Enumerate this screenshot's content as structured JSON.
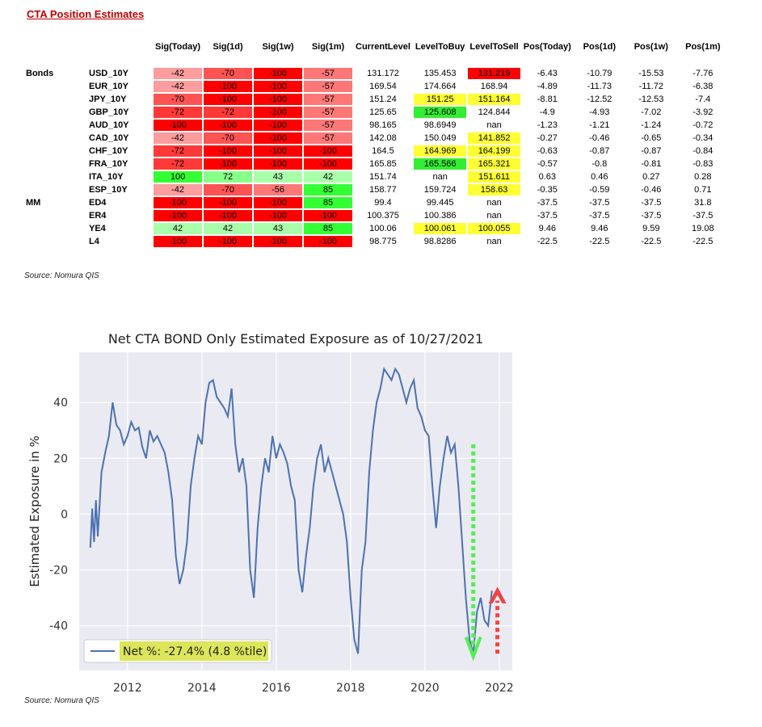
{
  "title": "CTA Position Estimates",
  "columns": [
    "Sig(Today)",
    "Sig(1d)",
    "Sig(1w)",
    "Sig(1m)",
    "CurrentLevel",
    "LevelToBuy",
    "LevelToSell",
    "Pos(Today)",
    "Pos(1d)",
    "Pos(1w)",
    "Pos(1m)"
  ],
  "colors": {
    "sig_palette": [
      "#ff0000",
      "#ff3838",
      "#fe5353",
      "#fe7777",
      "#fd9d9d",
      "#33ff33",
      "#88ff88",
      "#aaffaa"
    ],
    "highlight_yellow": "#ffff33",
    "highlight_green": "#33ee33",
    "highlight_red": "#ff0000",
    "chart_line": "#4c72b0",
    "chart_bg": "#eaeaf2",
    "legend_bg": "#dde65a",
    "arrow_green": "#55ee55",
    "arrow_red": "#ee4444"
  },
  "rows": [
    {
      "group": "Bonds",
      "name": "USD_10Y",
      "sig": [
        "-42",
        "-70",
        "-100",
        "-57"
      ],
      "current": "131.172",
      "buy": "135.453",
      "sell": "131.219",
      "sell_hl": "red",
      "pos": [
        "-6.43",
        "-10.79",
        "-15.53",
        "-7.76"
      ]
    },
    {
      "group": "",
      "name": "EUR_10Y",
      "sig": [
        "-42",
        "-100",
        "-100",
        "-57"
      ],
      "current": "169.54",
      "buy": "174.664",
      "sell": "168.94",
      "pos": [
        "-4.89",
        "-11.73",
        "-11.72",
        "-6.38"
      ]
    },
    {
      "group": "",
      "name": "JPY_10Y",
      "sig": [
        "-70",
        "-100",
        "-100",
        "-57"
      ],
      "current": "151.24",
      "buy": "151.25",
      "buy_hl": "yellow",
      "sell": "151.164",
      "sell_hl": "yellow",
      "pos": [
        "-8.81",
        "-12.52",
        "-12.53",
        "-7.4"
      ]
    },
    {
      "group": "",
      "name": "GBP_10Y",
      "sig": [
        "-72",
        "-72",
        "-100",
        "-57"
      ],
      "current": "125.65",
      "buy": "125.608",
      "buy_hl": "green",
      "sell": "124.844",
      "pos": [
        "-4.9",
        "-4.93",
        "-7.02",
        "-3.92"
      ]
    },
    {
      "group": "",
      "name": "AUD_10Y",
      "sig": [
        "-100",
        "-100",
        "-100",
        "-57"
      ],
      "current": "98.165",
      "buy": "98.6949",
      "sell": "nan",
      "pos": [
        "-1.23",
        "-1.21",
        "-1.24",
        "-0.72"
      ]
    },
    {
      "group": "",
      "name": "CAD_10Y",
      "sig": [
        "-42",
        "-70",
        "-100",
        "-57"
      ],
      "current": "142.08",
      "buy": "150.049",
      "sell": "141.852",
      "sell_hl": "yellow",
      "pos": [
        "-0.27",
        "-0.46",
        "-0.65",
        "-0.34"
      ]
    },
    {
      "group": "",
      "name": "CHF_10Y",
      "sig": [
        "-72",
        "-100",
        "-100",
        "-100"
      ],
      "current": "164.5",
      "buy": "164.969",
      "buy_hl": "yellow",
      "sell": "164.199",
      "sell_hl": "yellow",
      "pos": [
        "-0.63",
        "-0.87",
        "-0.87",
        "-0.84"
      ]
    },
    {
      "group": "",
      "name": "FRA_10Y",
      "sig": [
        "-72",
        "-100",
        "-100",
        "-100"
      ],
      "current": "165.85",
      "buy": "165.566",
      "buy_hl": "green",
      "sell": "165.321",
      "sell_hl": "yellow",
      "pos": [
        "-0.57",
        "-0.8",
        "-0.81",
        "-0.83"
      ]
    },
    {
      "group": "",
      "name": "ITA_10Y",
      "sig": [
        "100",
        "72",
        "43",
        "42"
      ],
      "current": "151.74",
      "buy": "nan",
      "sell": "151.611",
      "sell_hl": "yellow",
      "pos": [
        "0.63",
        "0.46",
        "0.27",
        "0.28"
      ]
    },
    {
      "group": "",
      "name": "ESP_10Y",
      "sig": [
        "-42",
        "-70",
        "-56",
        "85"
      ],
      "current": "158.77",
      "buy": "159.724",
      "sell": "158.63",
      "sell_hl": "yellow",
      "pos": [
        "-0.35",
        "-0.59",
        "-0.46",
        "0.71"
      ]
    },
    {
      "group": "MM",
      "name": "ED4",
      "sig": [
        "-100",
        "-100",
        "-100",
        "85"
      ],
      "current": "99.4",
      "buy": "99.445",
      "sell": "nan",
      "pos": [
        "-37.5",
        "-37.5",
        "-37.5",
        "31.8"
      ]
    },
    {
      "group": "",
      "name": "ER4",
      "sig": [
        "-100",
        "-100",
        "-100",
        "-100"
      ],
      "current": "100.375",
      "buy": "100.386",
      "sell": "nan",
      "pos": [
        "-37.5",
        "-37.5",
        "-37.5",
        "-37.5"
      ]
    },
    {
      "group": "",
      "name": "YE4",
      "sig": [
        "42",
        "42",
        "43",
        "85"
      ],
      "current": "100.06",
      "buy": "100.061",
      "buy_hl": "yellow",
      "sell": "100.055",
      "sell_hl": "yellow",
      "pos": [
        "9.46",
        "9.46",
        "9.59",
        "19.08"
      ]
    },
    {
      "group": "",
      "name": "L4",
      "sig": [
        "-100",
        "-100",
        "-100",
        "-100"
      ],
      "current": "98.775",
      "buy": "98.8286",
      "sell": "nan",
      "pos": [
        "-22.5",
        "-22.5",
        "-22.5",
        "-22.5"
      ]
    }
  ],
  "source_top": "Source: Nomura QIS",
  "source_bottom": "Source: Nomura QIS",
  "chart_data": {
    "type": "line",
    "title": "Net CTA BOND Only Estimated Exposure as of 10/27/2021",
    "xlabel": "",
    "ylabel": "Estimated Exposure in %",
    "xlim": [
      2010.7,
      2022.35
    ],
    "ylim": [
      -56,
      58
    ],
    "xticks": [
      2012,
      2014,
      2016,
      2018,
      2020,
      2022
    ],
    "yticks": [
      -40,
      -20,
      0,
      20,
      40
    ],
    "grid": true,
    "legend_position": "lower-left",
    "series": [
      {
        "name": "Net %:  -27.4% (4.8 %tile)",
        "x": [
          2011.0,
          2011.05,
          2011.1,
          2011.15,
          2011.2,
          2011.3,
          2011.4,
          2011.5,
          2011.6,
          2011.7,
          2011.8,
          2011.9,
          2012.0,
          2012.1,
          2012.2,
          2012.3,
          2012.4,
          2012.5,
          2012.6,
          2012.7,
          2012.8,
          2012.9,
          2013.0,
          2013.1,
          2013.2,
          2013.3,
          2013.4,
          2013.5,
          2013.6,
          2013.7,
          2013.8,
          2013.9,
          2014.0,
          2014.1,
          2014.2,
          2014.3,
          2014.4,
          2014.5,
          2014.6,
          2014.7,
          2014.8,
          2014.9,
          2015.0,
          2015.1,
          2015.2,
          2015.3,
          2015.4,
          2015.5,
          2015.6,
          2015.7,
          2015.8,
          2015.9,
          2016.0,
          2016.1,
          2016.2,
          2016.3,
          2016.4,
          2016.5,
          2016.6,
          2016.7,
          2016.8,
          2016.9,
          2017.0,
          2017.1,
          2017.2,
          2017.3,
          2017.4,
          2017.5,
          2017.6,
          2017.7,
          2017.8,
          2017.9,
          2018.0,
          2018.1,
          2018.2,
          2018.3,
          2018.4,
          2018.5,
          2018.6,
          2018.7,
          2018.8,
          2018.9,
          2019.0,
          2019.1,
          2019.2,
          2019.3,
          2019.4,
          2019.5,
          2019.6,
          2019.7,
          2019.8,
          2019.9,
          2020.0,
          2020.1,
          2020.2,
          2020.3,
          2020.4,
          2020.5,
          2020.6,
          2020.7,
          2020.8,
          2020.9,
          2021.0,
          2021.1,
          2021.2,
          2021.3,
          2021.4,
          2021.5,
          2021.6,
          2021.7,
          2021.8
        ],
        "y": [
          -12,
          2,
          -10,
          5,
          -8,
          15,
          22,
          28,
          40,
          32,
          30,
          25,
          28,
          33,
          30,
          31,
          24,
          20,
          30,
          26,
          28,
          25,
          22,
          15,
          5,
          -15,
          -25,
          -20,
          -10,
          10,
          20,
          28,
          25,
          40,
          47,
          48,
          42,
          40,
          38,
          35,
          45,
          25,
          15,
          20,
          10,
          -20,
          -30,
          -5,
          10,
          20,
          15,
          28,
          20,
          25,
          22,
          18,
          10,
          5,
          -20,
          -28,
          -15,
          -5,
          10,
          20,
          25,
          15,
          20,
          15,
          10,
          5,
          0,
          -10,
          -30,
          -45,
          -50,
          -20,
          -10,
          15,
          30,
          40,
          45,
          52,
          50,
          48,
          52,
          50,
          45,
          40,
          45,
          48,
          38,
          35,
          30,
          28,
          10,
          -5,
          10,
          20,
          28,
          22,
          25,
          10,
          -10,
          -30,
          -45,
          -50,
          -35,
          -30,
          -38,
          -40,
          -27.4
        ]
      }
    ]
  }
}
